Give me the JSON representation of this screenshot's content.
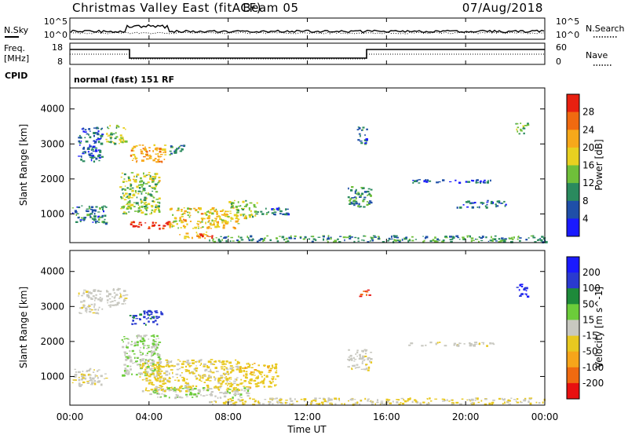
{
  "header": {
    "station": "Christmas Valley East (fitACF)",
    "beam": "Beam 05",
    "date": "07/Aug/2018"
  },
  "noise_panel": {
    "left_label": "N.Sky",
    "right_label": "N.Search",
    "ticks_left": [
      "10^5",
      "10^0"
    ],
    "ticks_right": [
      "10^5",
      "10^0"
    ]
  },
  "freq_panel": {
    "left_label_line1": "Freq.",
    "left_label_line2": "[MHz]",
    "right_label": "Nave",
    "ticks_left": [
      "18",
      "8"
    ],
    "ticks_right": [
      "60",
      "0"
    ]
  },
  "cpid": {
    "label": "CPID",
    "value": "normal (fast) 151 RF"
  },
  "colors": {
    "power_scale": [
      "#1a1aff",
      "#1f4fa8",
      "#2a8a5e",
      "#6fbf3a",
      "#e8d020",
      "#f7a81a",
      "#f06a10",
      "#e82010"
    ],
    "velocity_scale": [
      "#1a1aff",
      "#2a3ad0",
      "#1e8a3a",
      "#6ccc3a",
      "#c8c8c0",
      "#e8c820",
      "#f7a51a",
      "#f06a10",
      "#e81010"
    ]
  },
  "chart_data": [
    {
      "type": "heatmap",
      "title": "",
      "xlabel": "Time UT",
      "ylabel": "Slant Range [km]",
      "x_ticks": [
        "00:00",
        "04:00",
        "08:00",
        "12:00",
        "16:00",
        "20:00",
        "00:00"
      ],
      "y_ticks": [
        "1000",
        "2000",
        "3000",
        "4000"
      ],
      "xlim_hours": [
        0,
        24
      ],
      "ylim_km": [
        180,
        4600
      ],
      "colorbar": {
        "label": "Power [dB]",
        "ticks": [
          "4",
          "8",
          "12",
          "16",
          "20",
          "24",
          "28"
        ],
        "range": [
          0,
          30
        ]
      },
      "echo_regions": [
        {
          "t_start": 0.1,
          "t_end": 1.8,
          "r_low": 750,
          "r_high": 1250,
          "value": 8
        },
        {
          "t_start": 0.4,
          "t_end": 1.6,
          "r_low": 2500,
          "r_high": 3500,
          "value": 6
        },
        {
          "t_start": 1.8,
          "t_end": 2.8,
          "r_low": 3000,
          "r_high": 3550,
          "value": 14
        },
        {
          "t_start": 2.5,
          "t_end": 4.5,
          "r_low": 1000,
          "r_high": 2200,
          "value": 14
        },
        {
          "t_start": 3.0,
          "t_end": 5.0,
          "r_low": 600,
          "r_high": 800,
          "value": 28
        },
        {
          "t_start": 5.0,
          "t_end": 8.5,
          "r_low": 600,
          "r_high": 1200,
          "value": 18
        },
        {
          "t_start": 8.0,
          "t_end": 9.5,
          "r_low": 900,
          "r_high": 1400,
          "value": 14
        },
        {
          "t_start": 3.0,
          "t_end": 4.8,
          "r_low": 2500,
          "r_high": 3000,
          "value": 20
        },
        {
          "t_start": 5.0,
          "t_end": 5.8,
          "r_low": 2700,
          "r_high": 3000,
          "value": 8
        },
        {
          "t_start": 5.5,
          "t_end": 7.0,
          "r_low": 320,
          "r_high": 500,
          "value": 20
        },
        {
          "t_start": 6.4,
          "t_end": 7.2,
          "r_low": 320,
          "r_high": 450,
          "value": 28
        },
        {
          "t_start": 7.0,
          "t_end": 24.0,
          "r_low": 220,
          "r_high": 400,
          "value": 10
        },
        {
          "t_start": 9.5,
          "t_end": 11.0,
          "r_low": 1000,
          "r_high": 1200,
          "value": 8
        },
        {
          "t_start": 14.0,
          "t_end": 15.2,
          "r_low": 1200,
          "r_high": 1800,
          "value": 10
        },
        {
          "t_start": 14.5,
          "t_end": 15.0,
          "r_low": 3000,
          "r_high": 3500,
          "value": 8
        },
        {
          "t_start": 17.0,
          "t_end": 21.5,
          "r_low": 1900,
          "r_high": 2000,
          "value": 6
        },
        {
          "t_start": 19.5,
          "t_end": 22.0,
          "r_low": 1200,
          "r_high": 1400,
          "value": 6
        },
        {
          "t_start": 22.5,
          "t_end": 23.1,
          "r_low": 3300,
          "r_high": 3700,
          "value": 12
        }
      ]
    },
    {
      "type": "heatmap",
      "title": "",
      "xlabel": "Time UT",
      "ylabel": "Slant Range [km]",
      "x_ticks": [
        "00:00",
        "04:00",
        "08:00",
        "12:00",
        "16:00",
        "20:00",
        "00:00"
      ],
      "y_ticks": [
        "1000",
        "2000",
        "3000",
        "4000"
      ],
      "xlim_hours": [
        0,
        24
      ],
      "ylim_km": [
        180,
        4600
      ],
      "colorbar": {
        "label": "Velocity [m s^-1]",
        "ticks": [
          "200",
          "100",
          "50",
          "15",
          "-15",
          "-50",
          "-100",
          "-200"
        ],
        "range": [
          -250,
          250
        ]
      },
      "echo_regions": [
        {
          "t_start": 0.1,
          "t_end": 1.8,
          "r_low": 750,
          "r_high": 1250,
          "value": -10
        },
        {
          "t_start": 0.4,
          "t_end": 1.6,
          "r_low": 2800,
          "r_high": 3500,
          "value": -5
        },
        {
          "t_start": 1.8,
          "t_end": 2.8,
          "r_low": 3000,
          "r_high": 3550,
          "value": 0
        },
        {
          "t_start": 3.0,
          "t_end": 4.6,
          "r_low": 2500,
          "r_high": 2900,
          "value": 150
        },
        {
          "t_start": 2.6,
          "t_end": 4.5,
          "r_low": 1000,
          "r_high": 2200,
          "value": 30
        },
        {
          "t_start": 3.5,
          "t_end": 8.5,
          "r_low": 600,
          "r_high": 1500,
          "value": -40
        },
        {
          "t_start": 8.5,
          "t_end": 10.5,
          "r_low": 700,
          "r_high": 1400,
          "value": -60
        },
        {
          "t_start": 4.0,
          "t_end": 9.0,
          "r_low": 400,
          "r_high": 700,
          "value": 20
        },
        {
          "t_start": 7.0,
          "t_end": 24.0,
          "r_low": 220,
          "r_high": 400,
          "value": -30
        },
        {
          "t_start": 14.6,
          "t_end": 15.1,
          "r_low": 3300,
          "r_high": 3500,
          "value": -210
        },
        {
          "t_start": 14.0,
          "t_end": 15.2,
          "r_low": 1200,
          "r_high": 1800,
          "value": -5
        },
        {
          "t_start": 17.0,
          "t_end": 21.5,
          "r_low": 1900,
          "r_high": 2000,
          "value": -5
        },
        {
          "t_start": 22.5,
          "t_end": 23.1,
          "r_low": 3300,
          "r_high": 3700,
          "value": 210
        }
      ]
    }
  ]
}
